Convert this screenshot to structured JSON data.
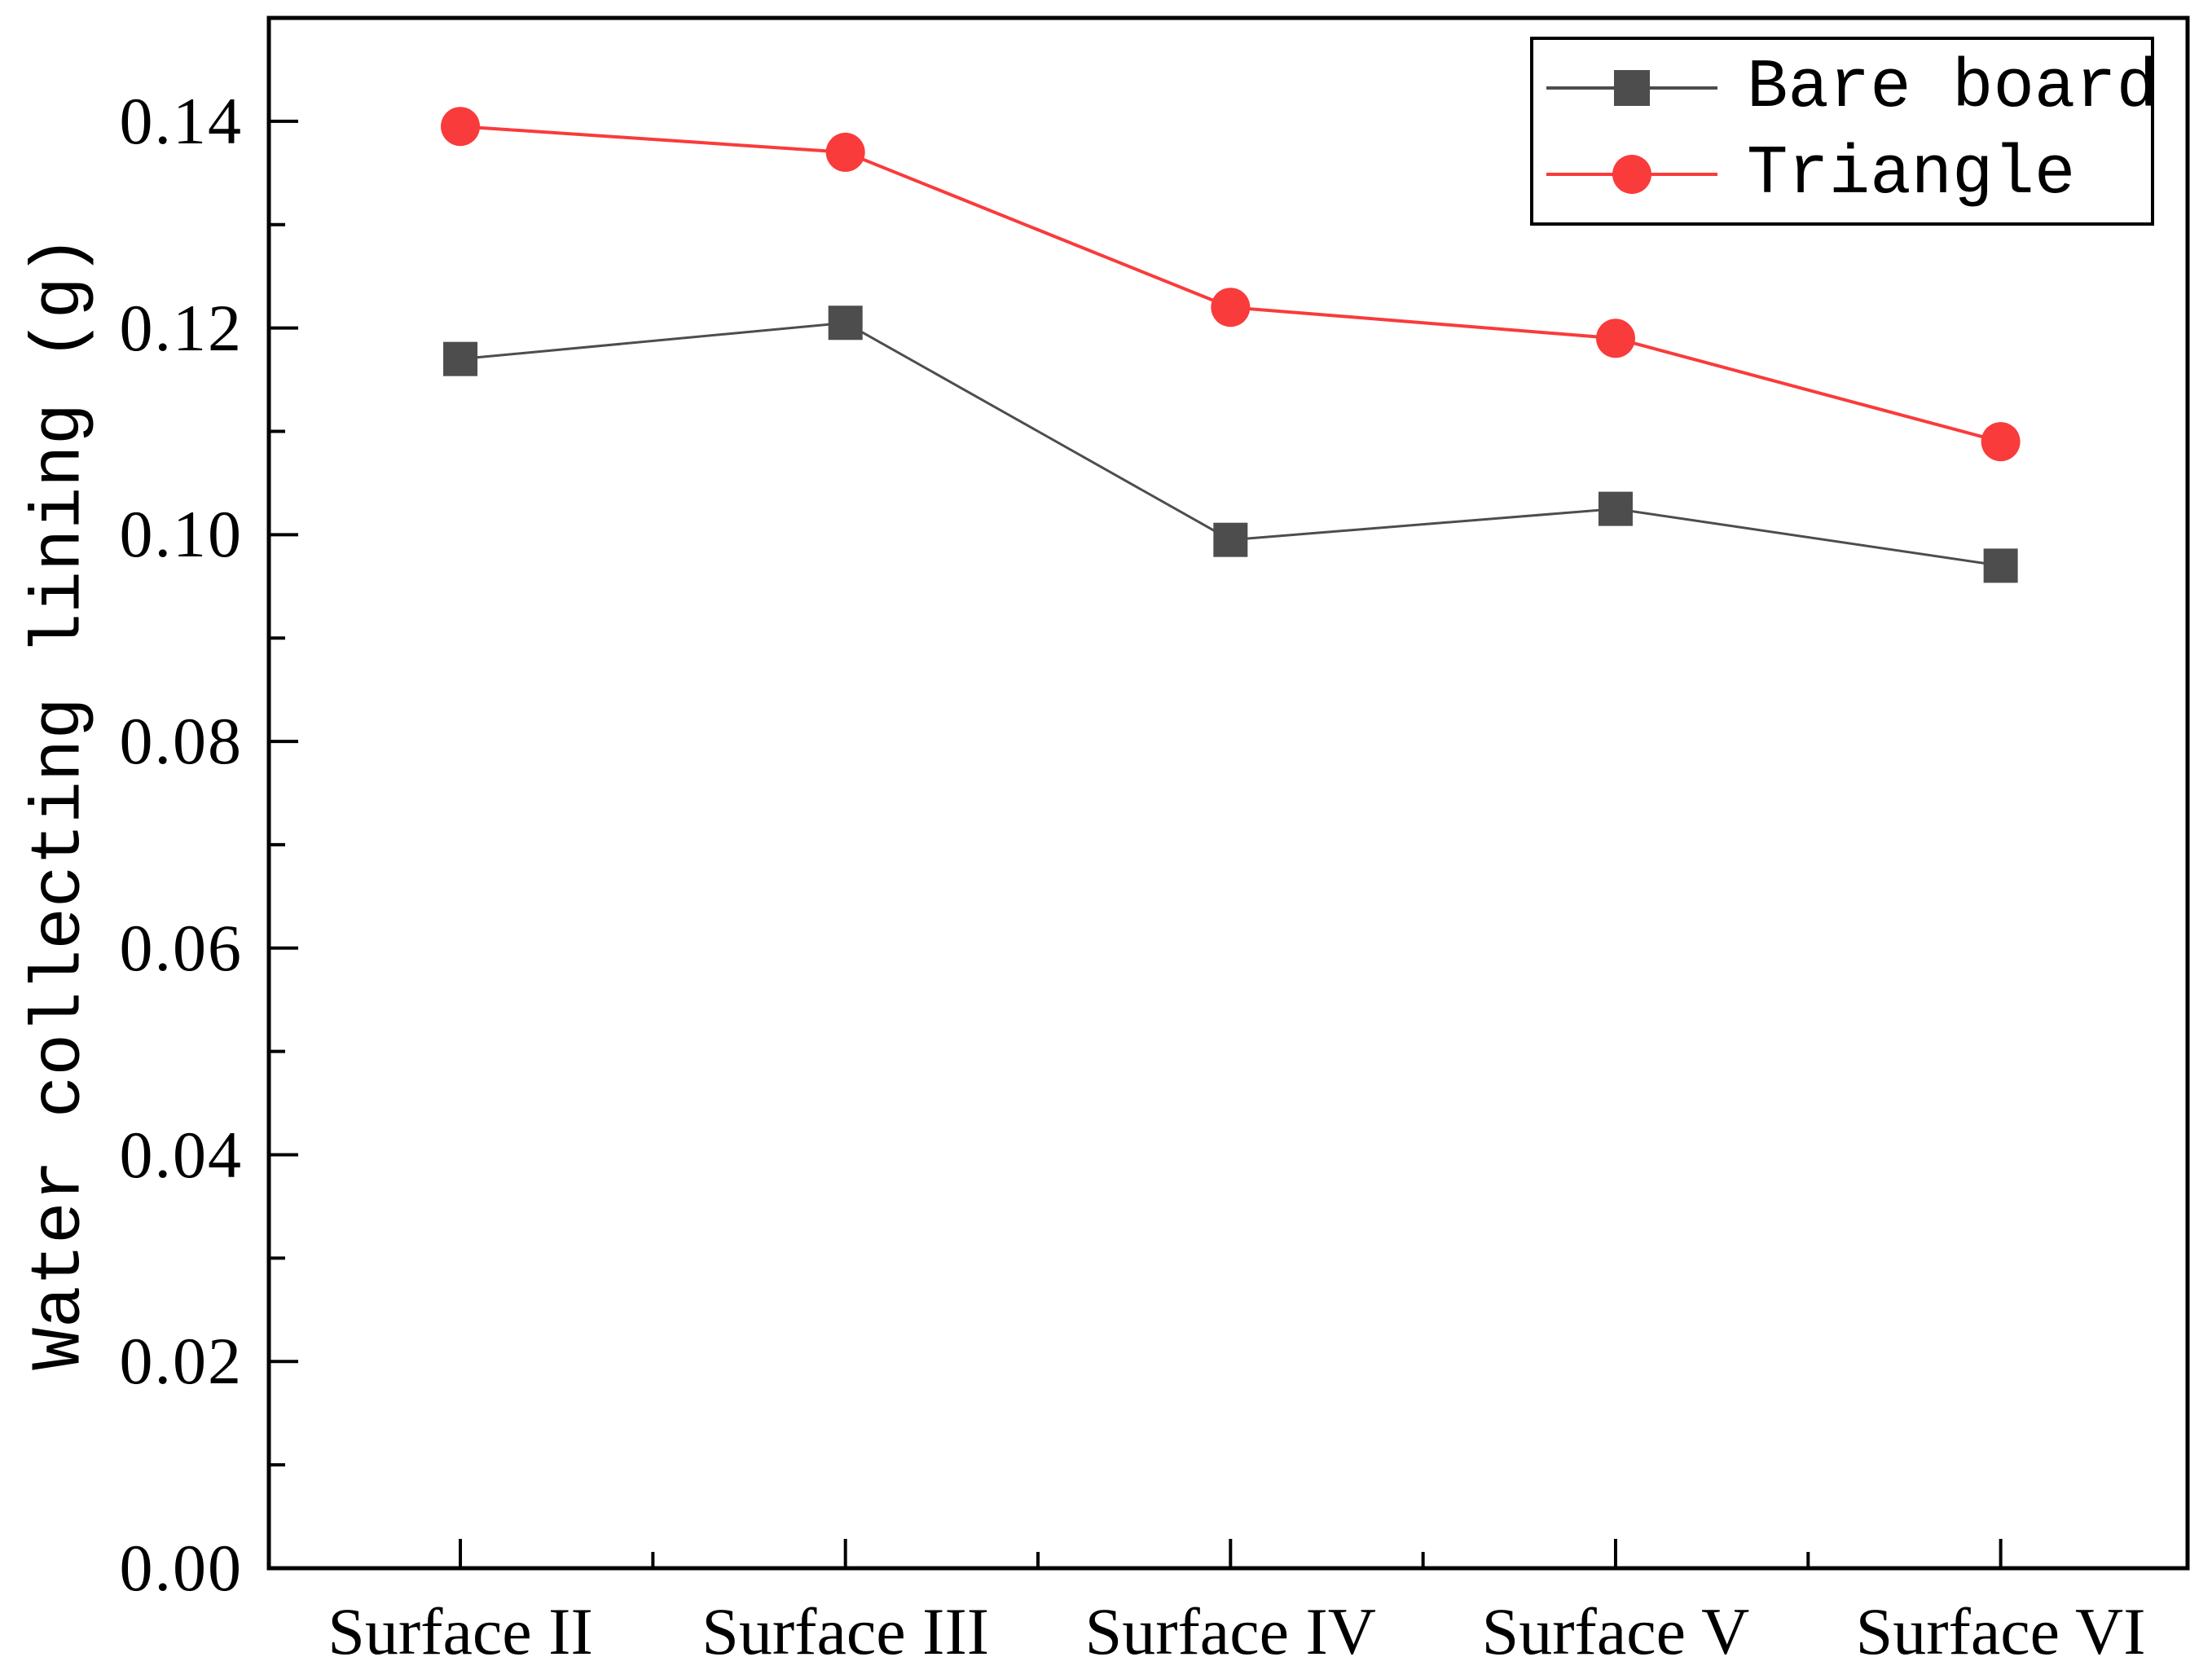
{
  "chart_data": {
    "type": "line",
    "categories": [
      "Surface II",
      "Surface III",
      "Surface IV",
      "Surface V",
      "Surface VI"
    ],
    "series": [
      {
        "name": "Bare board",
        "marker": "square",
        "color": "#4d4d4d",
        "line_width": 3,
        "values": [
          0.117,
          0.1205,
          0.0995,
          0.1025,
          0.097
        ]
      },
      {
        "name": "Triangle",
        "marker": "circle",
        "color": "#f93b3b",
        "line_width": 4,
        "values": [
          0.1395,
          0.137,
          0.122,
          0.119,
          0.109
        ]
      }
    ],
    "title": "",
    "xlabel": "",
    "ylabel": "Water collecting lining (g)",
    "ylim": [
      0.0,
      0.15
    ],
    "ytick_labels": [
      "0.00",
      "0.02",
      "0.04",
      "0.06",
      "0.08",
      "0.10",
      "0.12",
      "0.14"
    ],
    "ytick_values": [
      0.0,
      0.02,
      0.04,
      0.06,
      0.08,
      0.1,
      0.12,
      0.14
    ],
    "y_minor_step": 0.01,
    "grid": false,
    "legend_position": "top-right",
    "axis_color": "#000000",
    "background_color": "#ffffff"
  },
  "legend": {
    "entries": [
      {
        "label": "Bare board"
      },
      {
        "label": "Triangle"
      }
    ]
  },
  "axes": {
    "ylabel": "Water collecting lining (g)"
  }
}
